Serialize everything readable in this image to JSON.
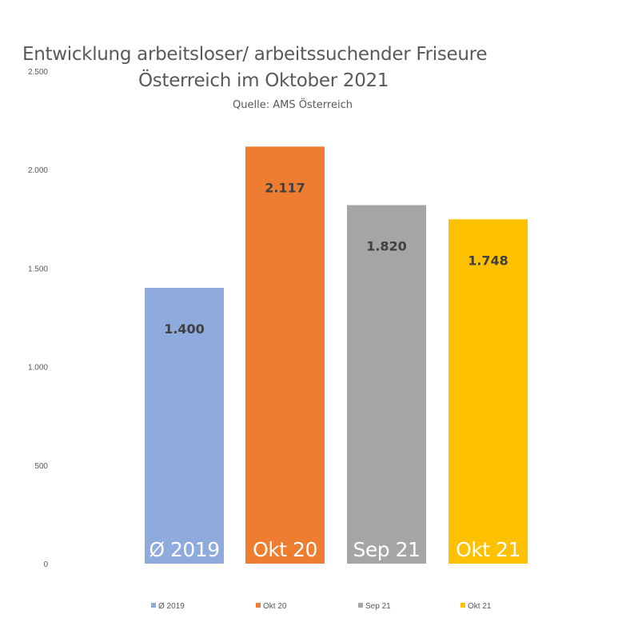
{
  "chart_data": {
    "type": "bar",
    "title_line1": "Entwicklung arbeitsloser/ arbeitssuchender Friseure",
    "title_line2": "Österreich im Oktober 2021",
    "subtitle": "Quelle: AMS Österreich",
    "xlabel": "",
    "ylabel": "",
    "ylim": [
      0,
      2500
    ],
    "yticks": [
      0,
      500,
      1000,
      1500,
      2000,
      2500
    ],
    "ytick_labels": [
      "0",
      "500",
      "1.000",
      "1.500",
      "2.000",
      "2.500"
    ],
    "grid": false,
    "legend_position": "bottom",
    "categories": [
      "Ø 2019",
      "Okt 20",
      "Sep 21",
      "Okt 21"
    ],
    "values": [
      1400,
      2117,
      1820,
      1748
    ],
    "value_labels": [
      "1.400",
      "2.117",
      "1.820",
      "1.748"
    ],
    "colors": [
      "#8FAADC",
      "#ED7D31",
      "#A5A5A5",
      "#FFC000"
    ],
    "legend": [
      "Ø 2019",
      "Okt 20",
      "Sep 21",
      "Okt 21"
    ]
  }
}
